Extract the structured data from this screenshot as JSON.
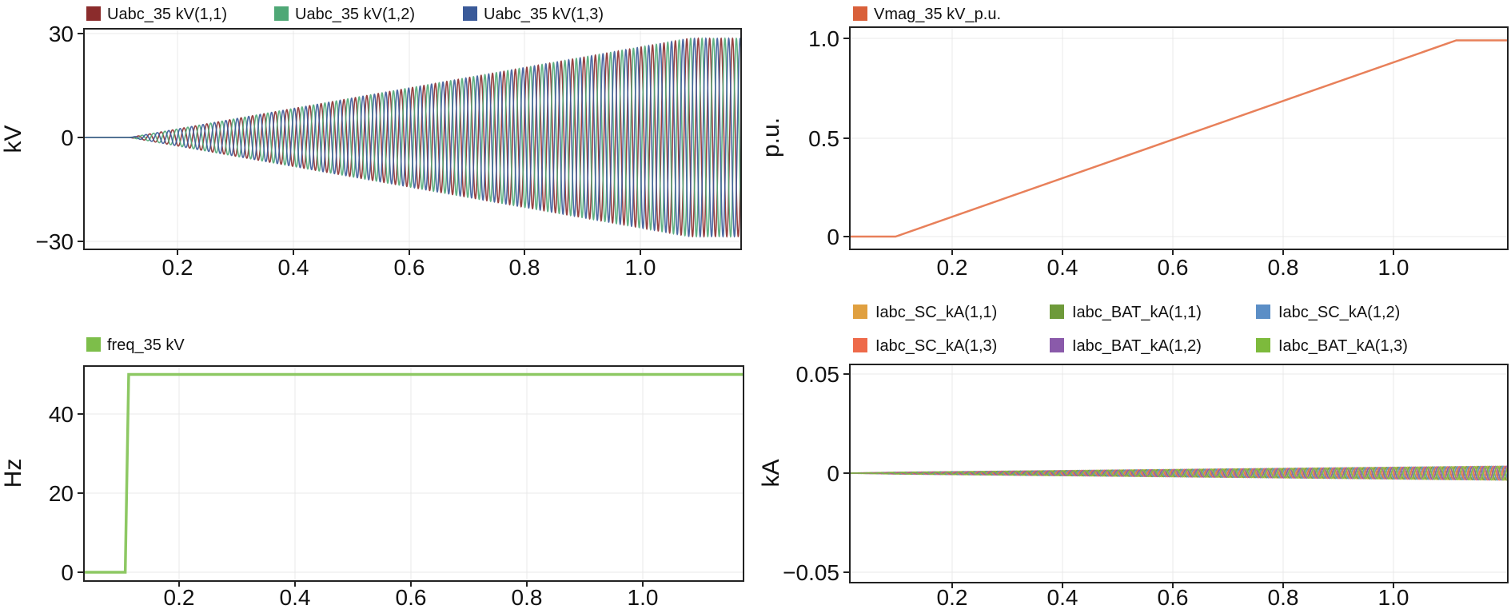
{
  "chart_data": [
    {
      "id": "voltage",
      "type": "line",
      "ylabel": "kV",
      "xlim": [
        0.03,
        1.18
      ],
      "ylim": [
        -32,
        32
      ],
      "xticks": [
        0.2,
        0.4,
        0.6,
        0.8,
        1.0
      ],
      "xtick_labels": [
        "0.2",
        "0.4",
        "0.6",
        "0.8",
        "1.0"
      ],
      "yticks": [
        -30,
        0,
        30
      ],
      "ytick_labels": [
        "−30",
        "0",
        "30"
      ],
      "grid": true,
      "legend_position": "top",
      "series": [
        {
          "name": "Uabc_35 kV(1,1)",
          "color": "#8B2C2C",
          "phase_deg": 0
        },
        {
          "name": "Uabc_35 kV(1,2)",
          "color": "#4FA876",
          "phase_deg": 120
        },
        {
          "name": "Uabc_35 kV(1,3)",
          "color": "#3A5A99",
          "phase_deg": 240
        }
      ],
      "envelope": {
        "x": [
          0.03,
          0.11,
          1.09,
          1.18
        ],
        "amplitude_kV": [
          0,
          0,
          28.6,
          28.6
        ]
      }
    },
    {
      "id": "vmag",
      "type": "line",
      "ylabel": "p.u.",
      "xlim": [
        0.03,
        1.18
      ],
      "ylim": [
        -0.07,
        1.03
      ],
      "xticks": [
        0.2,
        0.4,
        0.6,
        0.8,
        1.0
      ],
      "xtick_labels": [
        "0.2",
        "0.4",
        "0.6",
        "0.8",
        "1.0"
      ],
      "yticks": [
        0,
        0.5,
        1.0
      ],
      "ytick_labels": [
        "0",
        "0.5",
        "1.0"
      ],
      "grid": true,
      "legend_position": "top",
      "series": [
        {
          "name": "Vmag_35 kV_p.u.",
          "color": "#E8805A",
          "x": [
            0.03,
            0.11,
            1.09,
            1.18
          ],
          "y": [
            0,
            0,
            0.99,
            0.99
          ]
        }
      ]
    },
    {
      "id": "freq",
      "type": "line",
      "ylabel": "Hz",
      "xlim": [
        0.03,
        1.18
      ],
      "ylim": [
        -2,
        53
      ],
      "xticks": [
        0.2,
        0.4,
        0.6,
        0.8,
        1.0
      ],
      "xtick_labels": [
        "0.2",
        "0.4",
        "0.6",
        "0.8",
        "1.0"
      ],
      "yticks": [
        0,
        20,
        40
      ],
      "ytick_labels": [
        "0",
        "20",
        "40"
      ],
      "grid": true,
      "legend_position": "top",
      "series": [
        {
          "name": "freq_35 kV",
          "color": "#8DC863",
          "x": [
            0.03,
            0.102,
            0.108,
            1.18
          ],
          "y": [
            0,
            0,
            50,
            50
          ]
        }
      ]
    },
    {
      "id": "current",
      "type": "line",
      "ylabel": "kA",
      "xlim": [
        0.03,
        1.18
      ],
      "ylim": [
        -0.055,
        0.055
      ],
      "xticks": [
        0.2,
        0.4,
        0.6,
        0.8,
        1.0
      ],
      "xtick_labels": [
        "0.2",
        "0.4",
        "0.6",
        "0.8",
        "1.0"
      ],
      "yticks": [
        -0.05,
        0,
        0.05
      ],
      "ytick_labels": [
        "−0.05",
        "0",
        "0.05"
      ],
      "grid": true,
      "legend_position": "top",
      "series": [
        {
          "name": "Iabc_SC_kA(1,1)",
          "color": "#E0A040"
        },
        {
          "name": "Iabc_BAT_kA(1,1)",
          "color": "#6E9A3A"
        },
        {
          "name": "Iabc_SC_kA(1,2)",
          "color": "#5B8EC6"
        },
        {
          "name": "Iabc_SC_kA(1,3)",
          "color": "#EE6A4A"
        },
        {
          "name": "Iabc_BAT_kA(1,2)",
          "color": "#8A5AAA"
        },
        {
          "name": "Iabc_BAT_kA(1,3)",
          "color": "#7DBA3C"
        }
      ],
      "envelope": {
        "x": [
          0.03,
          0.11,
          1.18
        ],
        "amplitude_kA": [
          0,
          0.0004,
          0.0035
        ]
      }
    }
  ]
}
